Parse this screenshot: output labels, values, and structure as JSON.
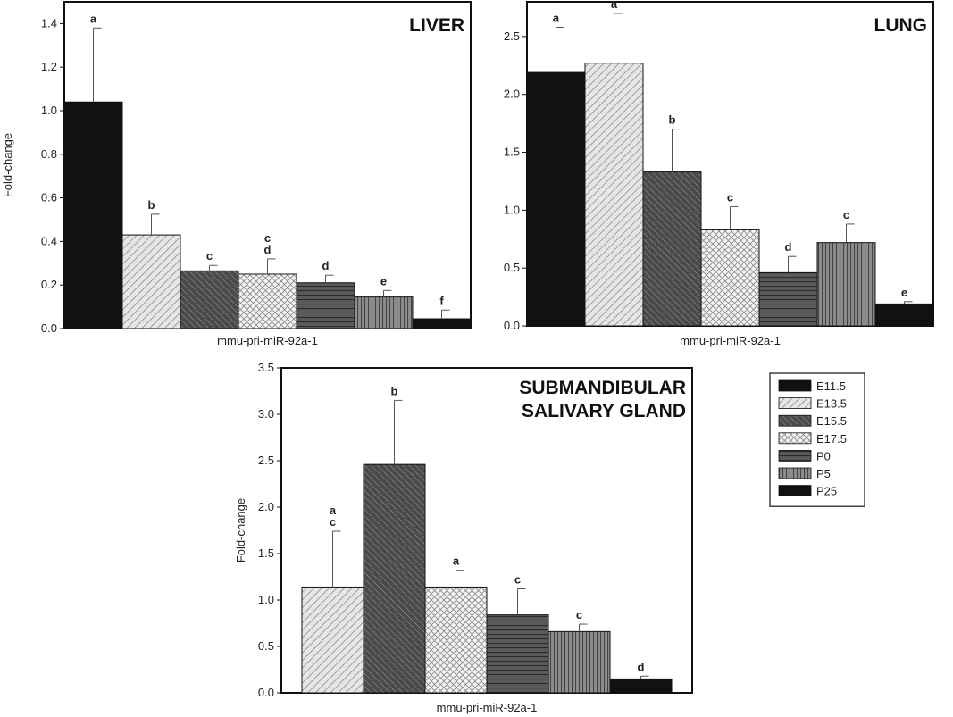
{
  "legend": {
    "items": [
      {
        "label": "E11.5",
        "pattern": "solid-dark"
      },
      {
        "label": "E13.5",
        "pattern": "diag-light"
      },
      {
        "label": "E15.5",
        "pattern": "diag-dark"
      },
      {
        "label": "E17.5",
        "pattern": "crosshatch"
      },
      {
        "label": "P0",
        "pattern": "horizontal"
      },
      {
        "label": "P5",
        "pattern": "vertical"
      },
      {
        "label": "P25",
        "pattern": "solid-dark"
      }
    ]
  },
  "chart_data": [
    {
      "type": "bar",
      "title": "LIVER",
      "xlabel": "mmu-pri-miR-92a-1",
      "ylabel": "Fold-change",
      "ylim": [
        0,
        1.5
      ],
      "yticks": [
        0.0,
        0.2,
        0.4,
        0.6,
        0.8,
        1.0,
        1.2,
        1.4
      ],
      "categories": [
        "E11.5",
        "E13.5",
        "E15.5",
        "E17.5",
        "P0",
        "P5",
        "P25"
      ],
      "values": [
        1.04,
        0.43,
        0.265,
        0.25,
        0.21,
        0.145,
        0.045
      ],
      "error_upper": [
        1.38,
        0.525,
        0.29,
        0.32,
        0.245,
        0.175,
        0.085
      ],
      "significance": [
        [
          "a"
        ],
        [
          "b"
        ],
        [
          "c"
        ],
        [
          "c",
          "d"
        ],
        [
          "d"
        ],
        [
          "e"
        ],
        [
          "f"
        ]
      ]
    },
    {
      "type": "bar",
      "title": "LUNG",
      "xlabel": "mmu-pri-miR-92a-1",
      "ylabel": "",
      "ylim": [
        0,
        2.8
      ],
      "yticks": [
        0.0,
        0.5,
        1.0,
        1.5,
        2.0,
        2.5
      ],
      "categories": [
        "E11.5",
        "E13.5",
        "E15.5",
        "E17.5",
        "P0",
        "P5",
        "P25"
      ],
      "values": [
        2.19,
        2.27,
        1.33,
        0.83,
        0.46,
        0.72,
        0.19
      ],
      "error_upper": [
        2.58,
        2.7,
        1.7,
        1.03,
        0.6,
        0.88,
        0.21
      ],
      "significance": [
        [
          "a"
        ],
        [
          "a"
        ],
        [
          "b"
        ],
        [
          "c"
        ],
        [
          "d"
        ],
        [
          "c"
        ],
        [
          "e"
        ]
      ]
    },
    {
      "type": "bar",
      "title": "SUBMANDIBULAR SALIVARY GLAND",
      "title_lines": [
        "SUBMANDIBULAR",
        "SALIVARY GLAND"
      ],
      "xlabel": "mmu-pri-miR-92a-1",
      "ylabel": "Fold-change",
      "ylim": [
        0,
        3.5
      ],
      "yticks": [
        0.0,
        0.5,
        1.0,
        1.5,
        2.0,
        2.5,
        3.0,
        3.5
      ],
      "categories": [
        "E13.5",
        "E15.5",
        "E17.5",
        "P0",
        "P5",
        "P25"
      ],
      "values": [
        1.14,
        2.46,
        1.14,
        0.84,
        0.66,
        0.15
      ],
      "error_upper": [
        1.74,
        3.15,
        1.32,
        1.12,
        0.74,
        0.18
      ],
      "significance": [
        [
          "a",
          "c"
        ],
        [
          "b"
        ],
        [
          "a"
        ],
        [
          "c"
        ],
        [
          "c"
        ],
        [
          "d"
        ]
      ]
    }
  ]
}
